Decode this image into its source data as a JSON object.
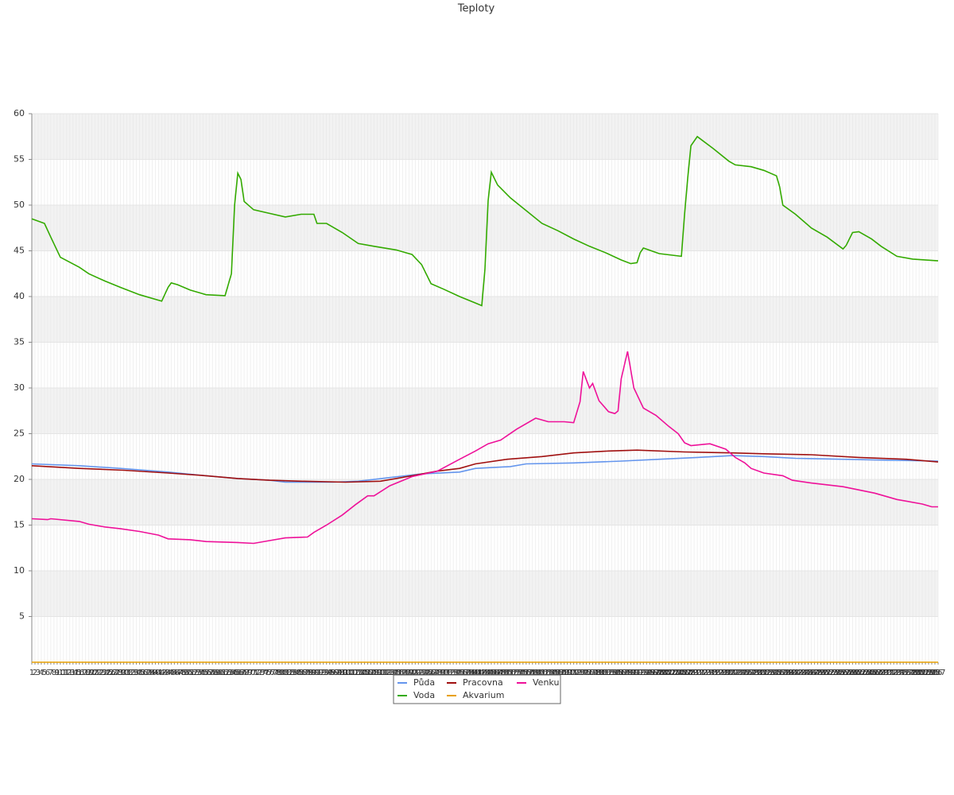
{
  "chart_data": {
    "type": "line",
    "title": "Teploty",
    "xlim": [
      1,
      287
    ],
    "ylim": [
      0,
      60
    ],
    "yticks": [
      5,
      10,
      15,
      20,
      25,
      30,
      35,
      40,
      45,
      50,
      55,
      60
    ],
    "xticks": [
      1,
      2,
      3,
      4,
      5,
      6,
      7,
      8,
      9,
      10,
      11,
      12,
      13,
      14,
      15,
      16,
      17,
      18,
      19,
      20,
      21,
      22,
      23,
      24,
      25,
      26,
      27,
      28,
      29,
      30,
      31,
      32,
      33,
      34,
      35,
      36,
      37,
      38,
      39,
      40,
      41,
      42,
      43,
      44,
      45,
      46,
      47,
      48,
      49,
      50,
      51,
      52,
      53,
      54,
      55,
      56,
      57,
      58,
      59,
      60,
      61,
      62,
      63,
      64,
      65,
      66,
      67,
      68,
      69,
      70,
      71,
      72,
      73,
      74,
      75,
      76,
      77,
      78,
      79,
      80,
      81,
      82,
      83,
      84,
      85,
      86,
      87,
      88,
      89,
      90,
      91,
      92,
      93,
      94,
      95,
      96,
      97,
      98,
      99,
      100,
      101,
      102,
      103,
      104,
      105,
      106,
      107,
      108,
      109,
      110,
      111,
      112,
      113,
      114,
      115,
      116,
      117,
      118,
      119,
      120,
      121,
      122,
      123,
      124,
      125,
      126,
      127,
      128,
      129,
      130,
      131,
      132,
      133,
      134,
      135,
      136,
      137,
      138,
      139,
      140,
      141,
      142,
      143,
      144,
      145,
      146,
      147,
      148,
      149,
      150,
      151,
      152,
      153,
      154,
      155,
      156,
      157,
      158,
      159,
      160,
      161,
      162,
      163,
      164,
      165,
      166,
      167,
      168,
      169,
      170,
      171,
      172,
      173,
      174,
      175,
      176,
      177,
      178,
      179,
      180,
      181,
      182,
      183,
      184,
      185,
      186,
      187,
      188,
      189,
      190,
      191,
      192,
      193,
      194,
      195,
      196,
      197,
      198,
      199,
      200,
      201,
      202,
      203,
      204,
      205,
      206,
      207,
      208,
      209,
      210,
      211,
      212,
      213,
      214,
      215,
      216,
      217,
      218,
      219,
      220,
      221,
      222,
      223,
      224,
      225,
      226,
      227,
      228,
      229,
      230,
      231,
      232,
      233,
      234,
      235,
      236,
      237,
      238,
      239,
      240,
      241,
      242,
      243,
      244,
      245,
      246,
      247,
      248,
      249,
      250,
      251,
      252,
      253,
      254,
      255,
      256,
      257,
      258,
      259,
      260,
      261,
      262,
      263,
      264,
      265,
      266,
      267,
      268,
      269,
      270,
      271,
      272,
      273,
      274,
      275,
      276,
      277,
      278,
      279,
      280,
      281,
      282,
      283,
      284,
      285,
      286,
      287
    ],
    "grid": true,
    "bands": true,
    "legend": "bottom",
    "series": [
      {
        "name": "Půda",
        "color": "#6495ed",
        "x": [
          1,
          16,
          29,
          44,
          56,
          66,
          76,
          81,
          96,
          104,
          114,
          124,
          136,
          141,
          152,
          157,
          172,
          187,
          199,
          211,
          222,
          232,
          242,
          257,
          272,
          287
        ],
        "values": [
          21.7,
          21.5,
          21.2,
          20.8,
          20.4,
          20.1,
          19.9,
          19.7,
          19.7,
          19.8,
          20.2,
          20.6,
          20.8,
          21.2,
          21.4,
          21.7,
          21.8,
          22.0,
          22.2,
          22.4,
          22.6,
          22.5,
          22.3,
          22.2,
          22.1,
          22.0
        ]
      },
      {
        "name": "Voda",
        "color": "#33aa00",
        "x": [
          1,
          5,
          7,
          10,
          16,
          19,
          24,
          29,
          35,
          41,
          42,
          44,
          45,
          47,
          51,
          56,
          62,
          64,
          65,
          66,
          67,
          68,
          71,
          76,
          81,
          86,
          90,
          91,
          94,
          99,
          104,
          109,
          116,
          121,
          124,
          127,
          131,
          136,
          141,
          143,
          144,
          145,
          146,
          148,
          152,
          157,
          162,
          167,
          172,
          177,
          182,
          187,
          190,
          192,
          193,
          194,
          199,
          206,
          207,
          208,
          209,
          211,
          216,
          221,
          223,
          228,
          232,
          236,
          237,
          238,
          242,
          247,
          252,
          257,
          258,
          260,
          262,
          266,
          269,
          274,
          279,
          287
        ],
        "values": [
          48.5,
          48,
          46.5,
          44.3,
          43.2,
          42.5,
          41.7,
          41,
          40.2,
          39.6,
          39.5,
          41,
          41.5,
          41.3,
          40.7,
          40.2,
          40.1,
          42.5,
          50,
          53.5,
          52.8,
          50.4,
          49.5,
          49.1,
          48.7,
          49,
          49,
          48,
          48,
          47,
          45.8,
          45.5,
          45.1,
          44.6,
          43.5,
          41.4,
          40.8,
          40,
          39.3,
          39,
          43,
          50.5,
          53.6,
          52.2,
          50.8,
          49.4,
          48,
          47.2,
          46.3,
          45.5,
          44.8,
          44,
          43.6,
          43.7,
          44.8,
          45.3,
          44.7,
          44.4,
          49,
          53,
          56.5,
          57.5,
          56.2,
          54.8,
          54.4,
          54.2,
          53.8,
          53.2,
          52,
          50,
          49,
          47.5,
          46.5,
          45.2,
          45.6,
          47,
          47.1,
          46.3,
          45.5,
          44.4,
          44.1,
          43.9
        ]
      },
      {
        "name": "Pracovna",
        "color": "#a01010",
        "x": [
          1,
          16,
          30,
          44,
          56,
          66,
          76,
          86,
          100,
          111,
          121,
          129,
          136,
          141,
          151,
          162,
          172,
          183,
          192,
          207,
          222,
          232,
          247,
          262,
          277,
          287
        ],
        "values": [
          21.5,
          21.2,
          21.0,
          20.7,
          20.4,
          20.1,
          19.9,
          19.8,
          19.7,
          19.8,
          20.4,
          20.9,
          21.2,
          21.7,
          22.2,
          22.5,
          22.9,
          23.1,
          23.2,
          23.0,
          22.9,
          22.8,
          22.7,
          22.4,
          22.2,
          21.9
        ]
      },
      {
        "name": "Akvarium",
        "color": "#e8a000",
        "x": [
          1,
          287
        ],
        "values": [
          0,
          0
        ]
      },
      {
        "name": "Venku",
        "color": "#ee1199",
        "x": [
          1,
          6,
          7,
          16,
          19,
          24,
          29,
          35,
          41,
          44,
          51,
          56,
          66,
          71,
          76,
          81,
          88,
          90,
          94,
          99,
          103,
          107,
          109,
          114,
          121,
          129,
          136,
          141,
          145,
          149,
          154,
          160,
          164,
          169,
          172,
          174,
          175,
          177,
          178,
          180,
          183,
          185,
          186,
          187,
          189,
          191,
          194,
          198,
          202,
          205,
          207,
          209,
          215,
          220,
          223,
          226,
          228,
          232,
          238,
          241,
          247,
          257,
          267,
          274,
          282,
          285,
          287
        ],
        "values": [
          15.7,
          15.6,
          15.7,
          15.4,
          15.1,
          14.8,
          14.6,
          14.3,
          13.9,
          13.5,
          13.4,
          13.2,
          13.1,
          13.0,
          13.3,
          13.6,
          13.7,
          14.2,
          15,
          16.1,
          17.2,
          18.2,
          18.2,
          19.3,
          20.3,
          20.9,
          22.2,
          23.1,
          23.9,
          24.3,
          25.5,
          26.7,
          26.3,
          26.3,
          26.2,
          28.5,
          31.8,
          30,
          30.5,
          28.6,
          27.4,
          27.2,
          27.5,
          31,
          34,
          30,
          27.8,
          27,
          25.8,
          25,
          24,
          23.7,
          23.9,
          23.3,
          22.4,
          21.8,
          21.2,
          20.7,
          20.4,
          19.9,
          19.6,
          19.2,
          18.5,
          17.8,
          17.3,
          17.0,
          17.0
        ]
      }
    ]
  }
}
